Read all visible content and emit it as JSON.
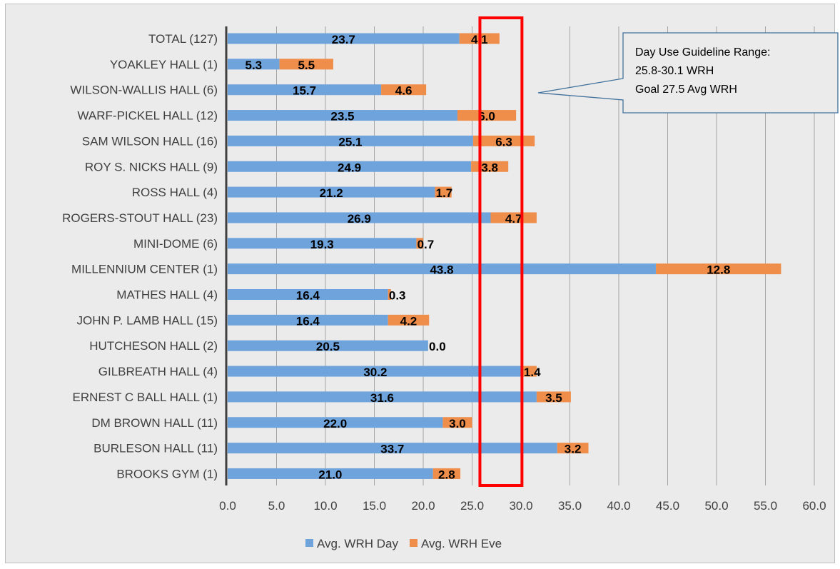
{
  "chart_data": {
    "type": "bar",
    "orientation": "horizontal",
    "stacked": true,
    "categories": [
      "TOTAL (127)",
      "YOAKLEY HALL (1)",
      "WILSON-WALLIS HALL (6)",
      "WARF-PICKEL HALL (12)",
      "SAM WILSON HALL (16)",
      "ROY S. NICKS HALL (9)",
      "ROSS HALL (4)",
      "ROGERS-STOUT HALL (23)",
      "MINI-DOME (6)",
      "MILLENNIUM CENTER (1)",
      "MATHES HALL (4)",
      "JOHN P. LAMB HALL (15)",
      "HUTCHESON HALL (2)",
      "GILBREATH HALL (4)",
      "ERNEST C BALL HALL (1)",
      "DM BROWN HALL (11)",
      "BURLESON HALL (11)",
      "BROOKS GYM (1)"
    ],
    "series": [
      {
        "name": "Avg. WRH Day",
        "color": "#6fa3dc",
        "values": [
          23.7,
          5.3,
          15.7,
          23.5,
          25.1,
          24.9,
          21.2,
          26.9,
          19.3,
          43.8,
          16.4,
          16.4,
          20.5,
          30.2,
          31.6,
          22.0,
          33.7,
          21.0
        ],
        "labels": [
          "23.7",
          "5.3",
          "15.7",
          "23.5",
          "25.1",
          "24.9",
          "21.2",
          "26.9",
          "19.3",
          "43.8",
          "16.4",
          "16.4",
          "20.5",
          "30.2",
          "31.6",
          "22.0",
          "33.7",
          "21.0"
        ]
      },
      {
        "name": "Avg. WRH Eve",
        "color": "#ee8e4a",
        "values": [
          4.1,
          5.5,
          4.6,
          6.0,
          6.3,
          3.8,
          1.7,
          4.7,
          0.7,
          12.8,
          0.3,
          4.2,
          0.0,
          1.4,
          3.5,
          3.0,
          3.2,
          2.8
        ],
        "labels": [
          "4.1",
          "5.5",
          "4.6",
          "6.0",
          "6.3",
          "3.8",
          "1.7",
          "4.7",
          "0.7",
          "12.8",
          "0.3",
          "4.2",
          "0.0",
          "1.4",
          "3.5",
          "3.0",
          "3.2",
          "2.8"
        ]
      }
    ],
    "x_axis": {
      "min": 0,
      "max": 60,
      "ticks": [
        0,
        5,
        10,
        15,
        20,
        25,
        30,
        35,
        40,
        45,
        50,
        55,
        60
      ],
      "tick_labels": [
        "0.0",
        "5.0",
        "10.0",
        "15.0",
        "20.0",
        "25.0",
        "30.0",
        "35.0",
        "40.0",
        "45.0",
        "50.0",
        "55.0",
        "60.0"
      ]
    },
    "grid": "vertical",
    "legend": "bottom",
    "highlight_range": {
      "from": 25.8,
      "to": 30.1,
      "color": "#ff0000"
    },
    "callout": {
      "lines": [
        "Day Use Guideline Range:",
        "25.8-30.1 WRH",
        "Goal 27.5 Avg WRH"
      ],
      "border_color": "#41719c"
    }
  }
}
